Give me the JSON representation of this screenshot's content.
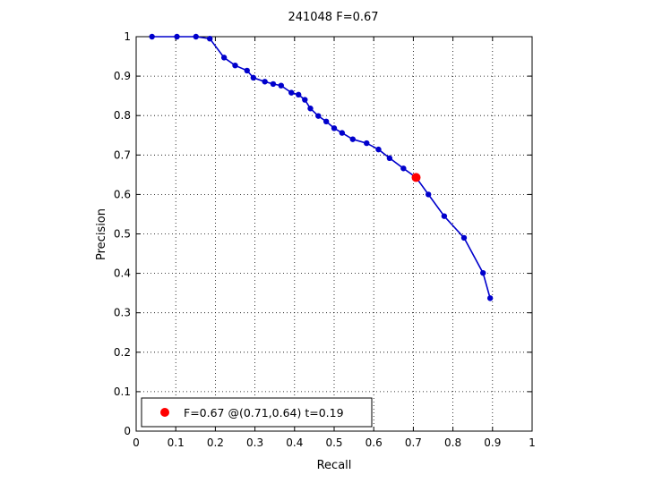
{
  "chart_data": {
    "type": "line",
    "title": "241048 F=0.67",
    "xlabel": "Recall",
    "ylabel": "Precision",
    "xlim": [
      0,
      1
    ],
    "ylim": [
      0,
      1
    ],
    "xticks": [
      "0",
      "0.1",
      "0.2",
      "0.3",
      "0.4",
      "0.5",
      "0.6",
      "0.7",
      "0.8",
      "0.9",
      "1"
    ],
    "yticks": [
      "0",
      "0.1",
      "0.2",
      "0.3",
      "0.4",
      "0.5",
      "0.6",
      "0.7",
      "0.8",
      "0.9",
      "1"
    ],
    "grid": true,
    "series": [
      {
        "color": "#0000cc",
        "marker": "dot",
        "x": [
          0.04,
          0.103,
          0.151,
          0.186,
          0.222,
          0.25,
          0.28,
          0.296,
          0.325,
          0.346,
          0.366,
          0.392,
          0.41,
          0.426,
          0.44,
          0.46,
          0.48,
          0.5,
          0.52,
          0.547,
          0.582,
          0.612,
          0.64,
          0.675,
          0.707,
          0.738,
          0.778,
          0.828,
          0.876,
          0.894
        ],
        "y": [
          1.0,
          1.0,
          1.0,
          0.995,
          0.947,
          0.927,
          0.914,
          0.896,
          0.886,
          0.88,
          0.876,
          0.858,
          0.853,
          0.84,
          0.818,
          0.799,
          0.785,
          0.768,
          0.756,
          0.74,
          0.73,
          0.714,
          0.692,
          0.666,
          0.643,
          0.6,
          0.545,
          0.49,
          0.401,
          0.337
        ]
      }
    ],
    "highlight_point": {
      "x": 0.707,
      "y": 0.643,
      "color": "#ff0000"
    },
    "legend": {
      "placement": "bottom-left",
      "text": "F=0.67 @(0.71,0.64) t=0.19"
    }
  }
}
